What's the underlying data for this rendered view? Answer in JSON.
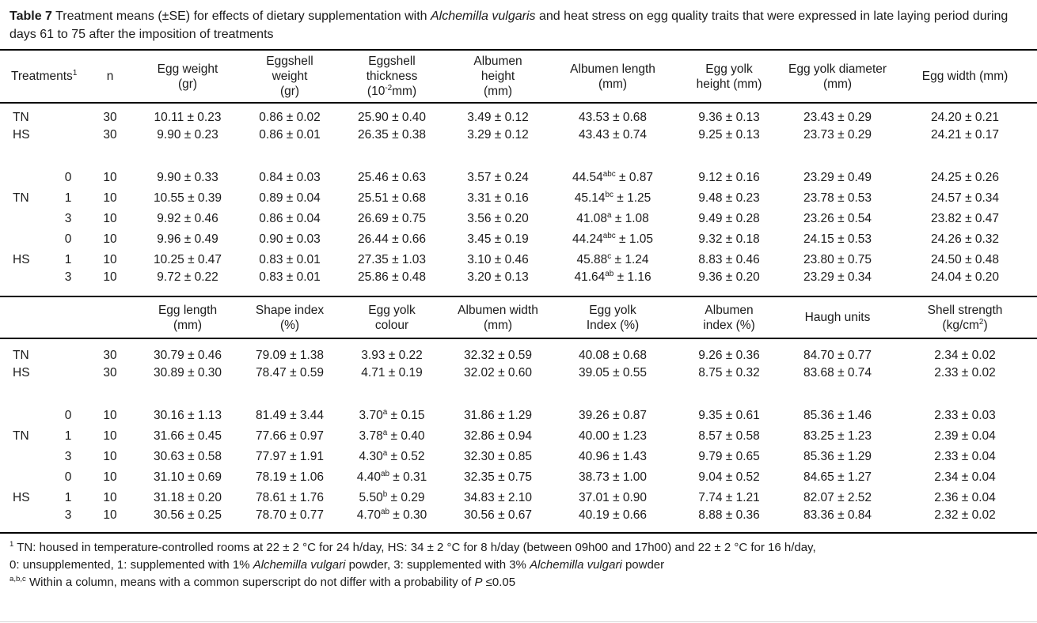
{
  "caption": {
    "label": "Table 7",
    "pre_species": " Treatment means (±SE) for effects of dietary supplementation with ",
    "species": "Alchemilla vulgaris",
    "post_species": " and heat stress on egg quality traits that were expressed in late laying period during days 61 to 75 after the imposition of treatments"
  },
  "table_top": {
    "headers": [
      "Treatments^{1}",
      "n",
      "Egg weight\n(gr)",
      "Eggshell\nweight\n(gr)",
      "Eggshell\nthickness\n(10^{-2}mm)",
      "Albumen\nheight\n(mm)",
      "Albumen length\n(mm)",
      "Egg yolk\nheight (mm)",
      "Egg yolk diameter\n(mm)",
      "Egg width (mm)"
    ],
    "summary_rows": [
      {
        "treatment": "TN",
        "level": "",
        "n": "30",
        "values": [
          "10.11 ± 0.23",
          "0.86 ± 0.02",
          "25.90 ± 0.40",
          "3.49 ± 0.12",
          "43.53 ± 0.68",
          "9.36 ± 0.13",
          "23.43 ± 0.29",
          "24.20 ± 0.21"
        ]
      },
      {
        "treatment": "HS",
        "level": "",
        "n": "30",
        "values": [
          "9.90 ± 0.23",
          "0.86 ± 0.01",
          "26.35 ± 0.38",
          "3.29 ± 0.12",
          "43.43 ± 0.74",
          "9.25 ± 0.13",
          "23.73 ± 0.29",
          "24.21 ± 0.17"
        ]
      }
    ],
    "detail_rows": [
      {
        "treatment": "",
        "level": "0",
        "n": "10",
        "values": [
          "9.90 ± 0.33",
          "0.84 ± 0.03",
          "25.46 ± 0.63",
          "3.57 ± 0.24",
          "44.54^{abc} ± 0.87",
          "9.12 ± 0.16",
          "23.29 ± 0.49",
          "24.25 ± 0.26"
        ]
      },
      {
        "treatment": "TN",
        "level": "1",
        "n": "10",
        "values": [
          "10.55 ± 0.39",
          "0.89 ± 0.04",
          "25.51 ± 0.68",
          "3.31 ± 0.16",
          "45.14^{bc} ± 1.25",
          "9.48 ± 0.23",
          "23.78 ± 0.53",
          "24.57 ± 0.34"
        ]
      },
      {
        "treatment": "",
        "level": "3",
        "n": "10",
        "values": [
          "9.92 ± 0.46",
          "0.86 ± 0.04",
          "26.69 ± 0.75",
          "3.56 ± 0.20",
          "41.08^{a} ± 1.08",
          "9.49 ± 0.28",
          "23.26 ± 0.54",
          "23.82 ± 0.47"
        ]
      },
      {
        "treatment": "",
        "level": "0",
        "n": "10",
        "values": [
          "9.96 ± 0.49",
          "0.90 ± 0.03",
          "26.44 ± 0.66",
          "3.45 ± 0.19",
          "44.24^{abc} ± 1.05",
          "9.32 ± 0.18",
          "24.15 ± 0.53",
          "24.26 ± 0.32"
        ]
      },
      {
        "treatment": "HS",
        "level": "1",
        "n": "10",
        "values": [
          "10.25 ± 0.47",
          "0.83 ± 0.01",
          "27.35 ± 1.03",
          "3.10 ± 0.46",
          "45.88^{c} ± 1.24",
          "8.83 ± 0.46",
          "23.80 ± 0.75",
          "24.50 ± 0.48"
        ]
      },
      {
        "treatment": "",
        "level": "3",
        "n": "10",
        "values": [
          "9.72 ± 0.22",
          "0.83 ± 0.01",
          "25.86 ± 0.48",
          "3.20 ± 0.13",
          "41.64^{ab} ± 1.16",
          "9.36 ± 0.20",
          "23.29 ± 0.34",
          "24.04 ± 0.20"
        ]
      }
    ]
  },
  "table_bottom": {
    "headers": [
      "",
      "Egg length\n(mm)",
      "Shape index\n(%)",
      "Egg yolk\ncolour",
      "Albumen width\n(mm)",
      "Egg yolk\nIndex (%)",
      "Albumen\nindex (%)",
      "Haugh units",
      "Shell strength\n(kg/cm^{2})"
    ],
    "summary_rows": [
      {
        "treatment": "TN",
        "level": "",
        "n": "30",
        "values": [
          "30.79 ± 0.46",
          "79.09 ± 1.38",
          "3.93 ± 0.22",
          "32.32 ± 0.59",
          "40.08 ± 0.68",
          "9.26 ± 0.36",
          "84.70 ± 0.77",
          "2.34 ± 0.02"
        ]
      },
      {
        "treatment": "HS",
        "level": "",
        "n": "30",
        "values": [
          "30.89 ± 0.30",
          "78.47 ± 0.59",
          "4.71 ± 0.19",
          "32.02 ± 0.60",
          "39.05 ± 0.55",
          "8.75 ± 0.32",
          "83.68 ± 0.74",
          "2.33 ± 0.02"
        ]
      }
    ],
    "detail_rows": [
      {
        "treatment": "",
        "level": "0",
        "n": "10",
        "values": [
          "30.16 ± 1.13",
          "81.49 ± 3.44",
          "3.70^{a} ± 0.15",
          "31.86 ± 1.29",
          "39.26 ± 0.87",
          "9.35 ± 0.61",
          "85.36 ± 1.46",
          "2.33 ± 0.03"
        ]
      },
      {
        "treatment": "TN",
        "level": "1",
        "n": "10",
        "values": [
          "31.66 ± 0.45",
          "77.66 ± 0.97",
          "3.78^{a} ± 0.40",
          "32.86 ± 0.94",
          "40.00 ± 1.23",
          "8.57 ± 0.58",
          "83.25 ± 1.23",
          "2.39 ± 0.04"
        ]
      },
      {
        "treatment": "",
        "level": "3",
        "n": "10",
        "values": [
          "30.63 ± 0.58",
          "77.97 ± 1.91",
          "4.30^{a} ± 0.52",
          "32.30 ± 0.85",
          "40.96 ± 1.43",
          "9.79 ± 0.65",
          "85.36 ± 1.29",
          "2.33 ± 0.04"
        ]
      },
      {
        "treatment": "",
        "level": "0",
        "n": "10",
        "values": [
          "31.10 ± 0.69",
          "78.19 ± 1.06",
          "4.40^{ab} ± 0.31",
          "32.35 ± 0.75",
          "38.73 ± 1.00",
          "9.04 ± 0.52",
          "84.65 ± 1.27",
          "2.34 ± 0.04"
        ]
      },
      {
        "treatment": "HS",
        "level": "1",
        "n": "10",
        "values": [
          "31.18 ± 0.20",
          "78.61 ± 1.76",
          "5.50^{b} ± 0.29",
          "34.83 ± 2.10",
          "37.01 ± 0.90",
          "7.74 ± 1.21",
          "82.07 ± 2.52",
          "2.36 ± 0.04"
        ]
      },
      {
        "treatment": "",
        "level": "3",
        "n": "10",
        "values": [
          "30.56 ± 0.25",
          "78.70 ± 0.77",
          "4.70^{ab} ± 0.30",
          "30.56 ± 0.67",
          "40.19 ± 0.66",
          "8.88 ± 0.36",
          "83.36 ± 0.84",
          "2.32 ± 0.02"
        ]
      }
    ]
  },
  "footnotes": {
    "line1": {
      "sup": "1",
      "text": " TN: housed in temperature-controlled rooms at 22 ± 2 °C for 24 h/day, HS: 34 ± 2 °C for 8 h/day (between 09h00 and 17h00) and 22 ± 2 °C for 16 h/day,"
    },
    "line2": {
      "p1": "0: unsupplemented, 1: supplemented with 1% ",
      "i1": "Alchemilla vulgari",
      "p2": " powder, 3: supplemented with 3% ",
      "i2": "Alchemilla vulgari",
      "p3": " powder"
    },
    "line3": {
      "sup": "a,b,c",
      "p1": " Within a column, means with a common superscript do not differ with a probability of ",
      "i1": "P",
      "p2": " ≤0.05"
    }
  }
}
